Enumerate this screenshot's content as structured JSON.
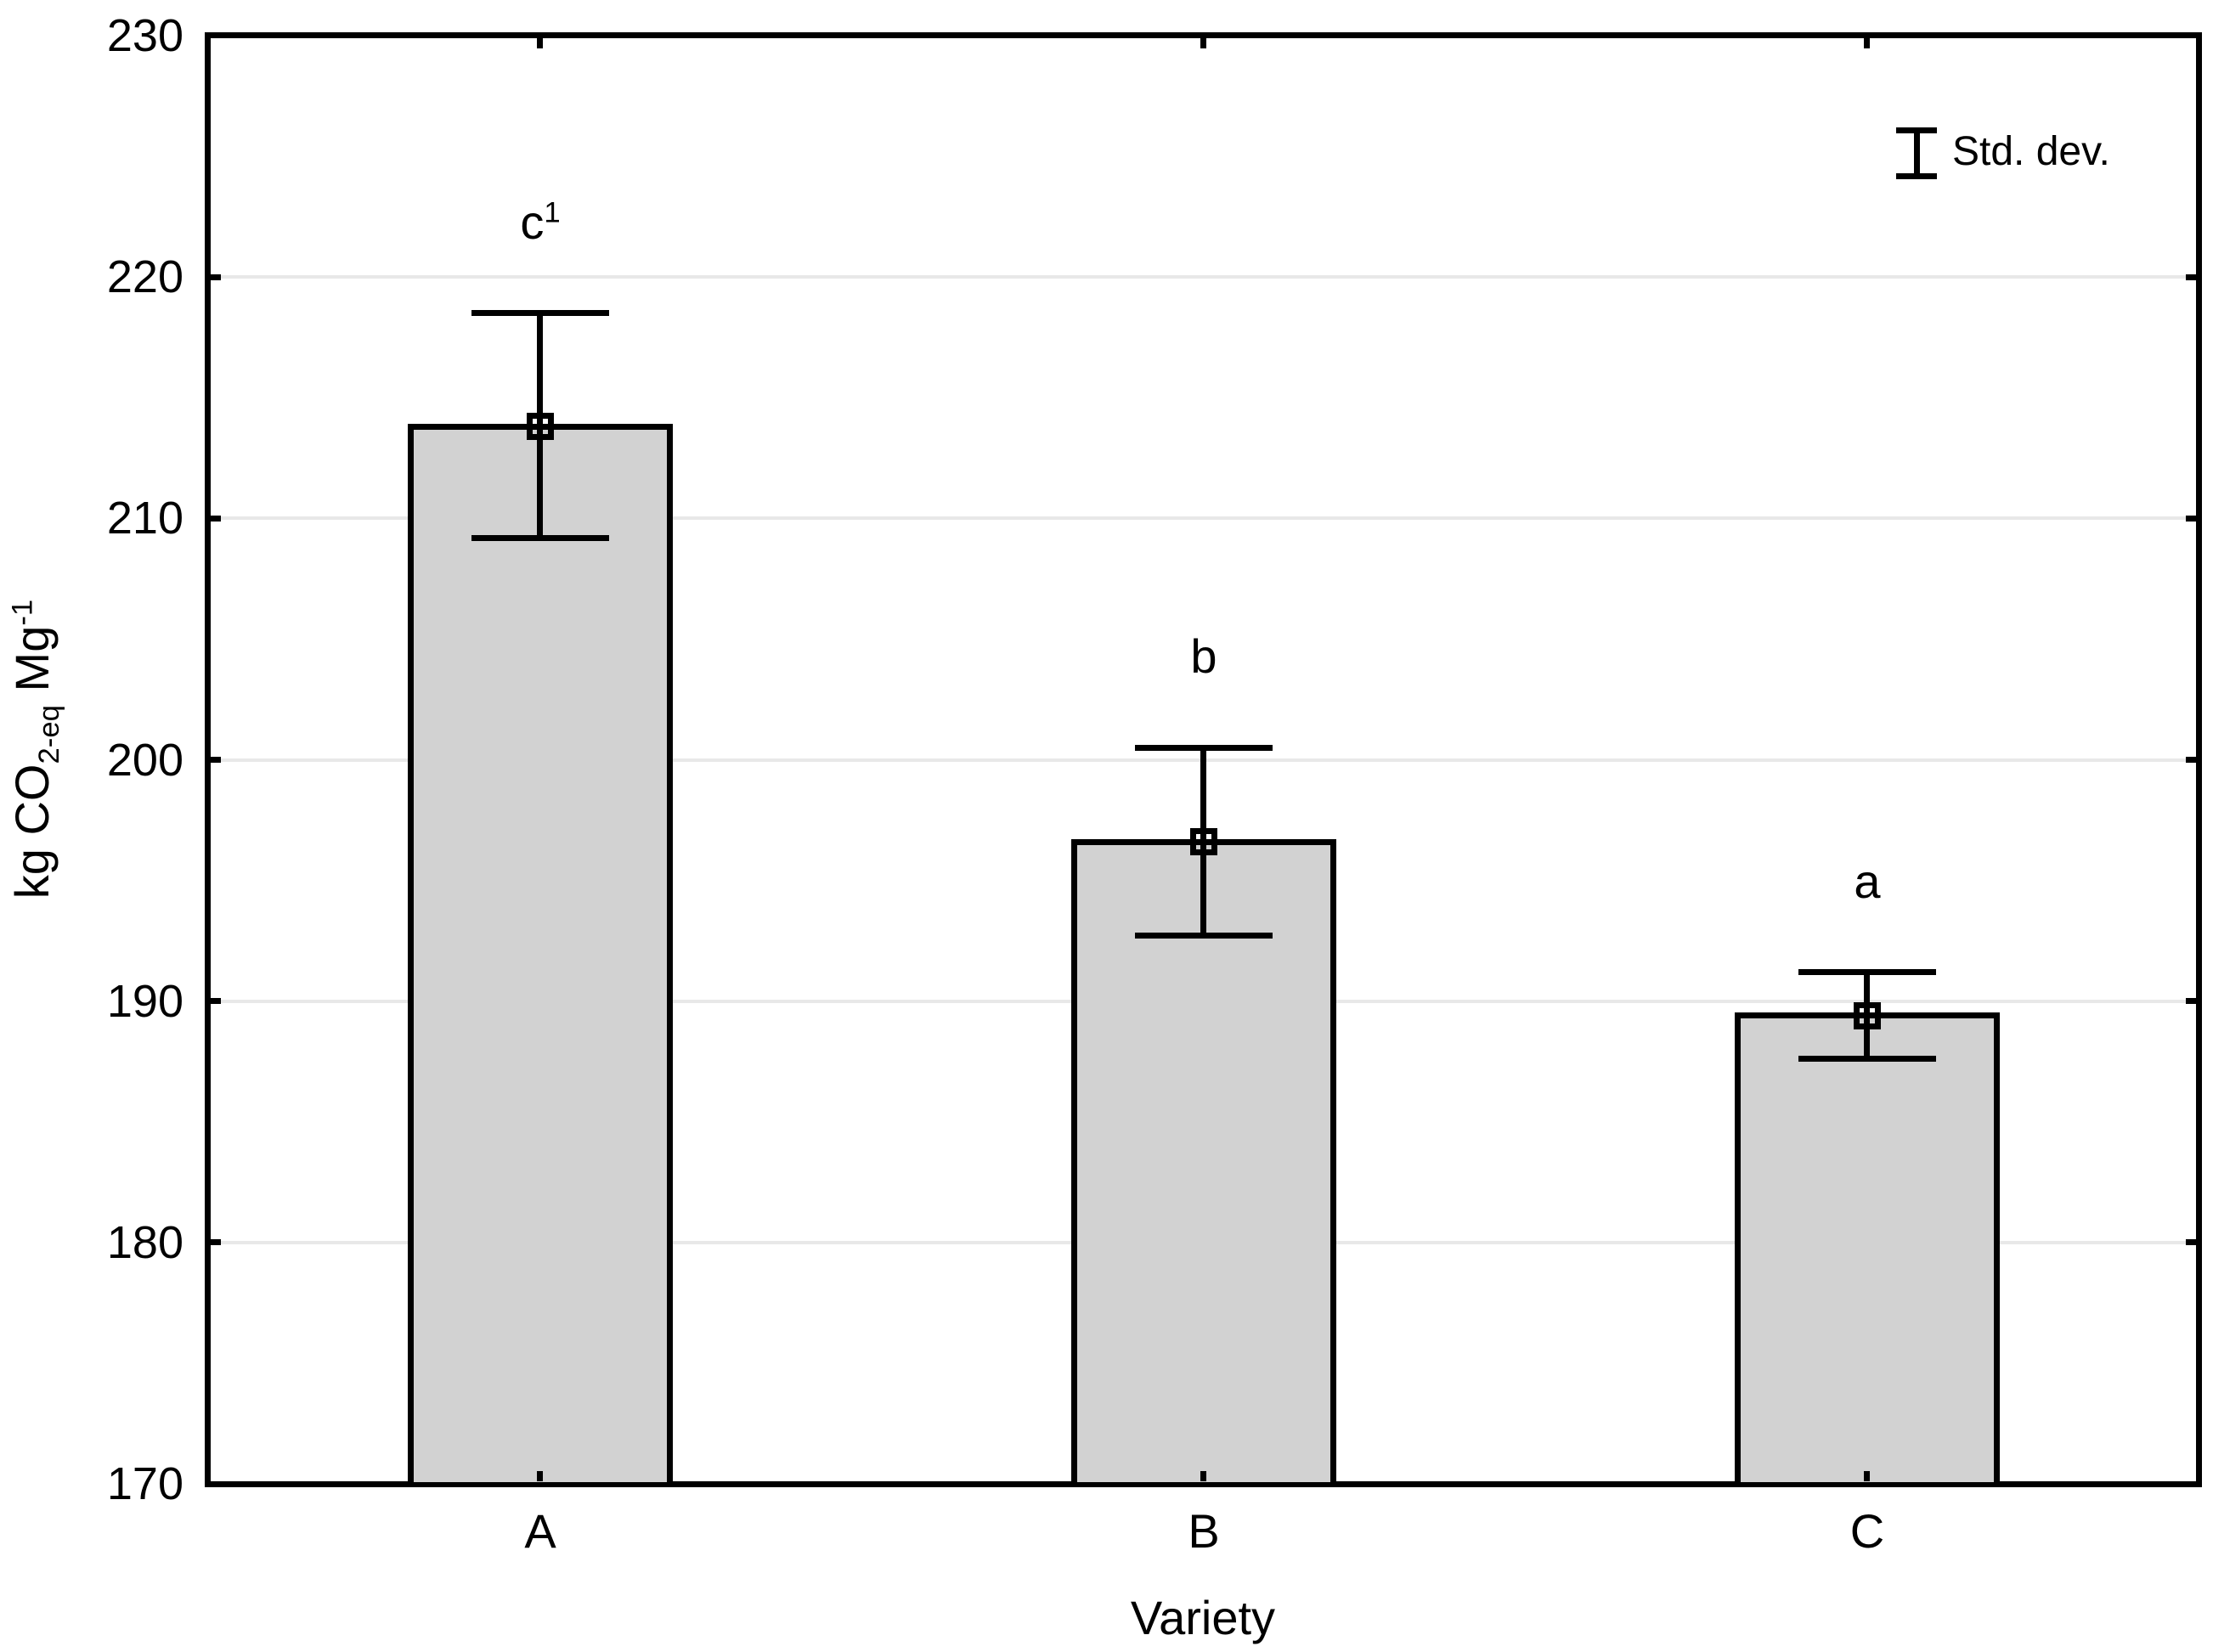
{
  "figure": {
    "background": "#ffffff",
    "axis_color": "#000000"
  },
  "chart_data": {
    "type": "bar",
    "title": "",
    "xlabel": "Variety",
    "ylabel": {
      "pre": "kg CO",
      "sub": "2-eq",
      "mid": " Mg",
      "sup": "-1"
    },
    "categories": [
      "A",
      "B",
      "C"
    ],
    "values": [
      213.8,
      196.6,
      189.4
    ],
    "std_dev": [
      4.7,
      3.9,
      1.8
    ],
    "error_upper": [
      218.5,
      200.5,
      191.2
    ],
    "error_lower": [
      209.2,
      192.7,
      187.6
    ],
    "sig_labels": [
      {
        "base": "c",
        "sup": "1"
      },
      {
        "base": "b",
        "sup": ""
      },
      {
        "base": "a",
        "sup": ""
      }
    ],
    "ylim": [
      170,
      230
    ],
    "yticks": [
      230,
      220,
      210,
      200,
      190,
      180,
      170
    ],
    "grid": "horizontal",
    "grid_color": "#e8e8e8",
    "bar_fill": "#d2d2d2",
    "bar_border": "#000000",
    "marker": "open-square",
    "legend": {
      "label": "Std. dev.",
      "position": "top-right",
      "icon": "error-bar-icon"
    }
  }
}
